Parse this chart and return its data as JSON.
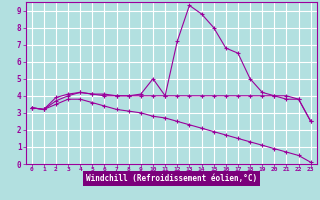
{
  "background_color": "#b2e0e0",
  "grid_color": "#ffffff",
  "line_color": "#9b009b",
  "xlabel": "Windchill (Refroidissement éolien,°C)",
  "xlabel_bg": "#7b007b",
  "xlabel_fg": "#ffffff",
  "xlim": [
    -0.5,
    23.5
  ],
  "ylim": [
    0,
    9.5
  ],
  "xticks": [
    0,
    1,
    2,
    3,
    4,
    5,
    6,
    7,
    8,
    9,
    10,
    11,
    12,
    13,
    14,
    15,
    16,
    17,
    18,
    19,
    20,
    21,
    22,
    23
  ],
  "yticks": [
    0,
    1,
    2,
    3,
    4,
    5,
    6,
    7,
    8,
    9
  ],
  "series1_x": [
    0,
    1,
    2,
    3,
    4,
    5,
    6,
    7,
    8,
    9,
    10,
    11,
    12,
    13,
    14,
    15,
    16,
    17,
    18,
    19,
    20,
    21,
    22,
    23
  ],
  "series1_y": [
    3.3,
    3.2,
    3.9,
    4.1,
    4.2,
    4.1,
    4.1,
    4.0,
    4.0,
    4.0,
    4.0,
    4.0,
    4.0,
    4.0,
    4.0,
    4.0,
    4.0,
    4.0,
    4.0,
    4.0,
    4.0,
    3.8,
    3.8,
    2.5
  ],
  "series2_x": [
    0,
    1,
    2,
    3,
    4,
    5,
    6,
    7,
    8,
    9,
    10,
    11,
    12,
    13,
    14,
    15,
    16,
    17,
    18,
    19,
    20,
    21,
    22,
    23
  ],
  "series2_y": [
    3.3,
    3.2,
    3.7,
    4.0,
    4.2,
    4.1,
    4.0,
    4.0,
    4.0,
    4.1,
    5.0,
    4.0,
    7.2,
    9.3,
    8.8,
    8.0,
    6.8,
    6.5,
    5.0,
    4.2,
    4.0,
    4.0,
    3.8,
    2.5
  ],
  "series3_x": [
    0,
    1,
    2,
    3,
    4,
    5,
    6,
    7,
    8,
    9,
    10,
    11,
    12,
    13,
    14,
    15,
    16,
    17,
    18,
    19,
    20,
    21,
    22,
    23
  ],
  "series3_y": [
    3.3,
    3.2,
    3.5,
    3.8,
    3.8,
    3.6,
    3.4,
    3.2,
    3.1,
    3.0,
    2.8,
    2.7,
    2.5,
    2.3,
    2.1,
    1.9,
    1.7,
    1.5,
    1.3,
    1.1,
    0.9,
    0.7,
    0.5,
    0.1
  ]
}
